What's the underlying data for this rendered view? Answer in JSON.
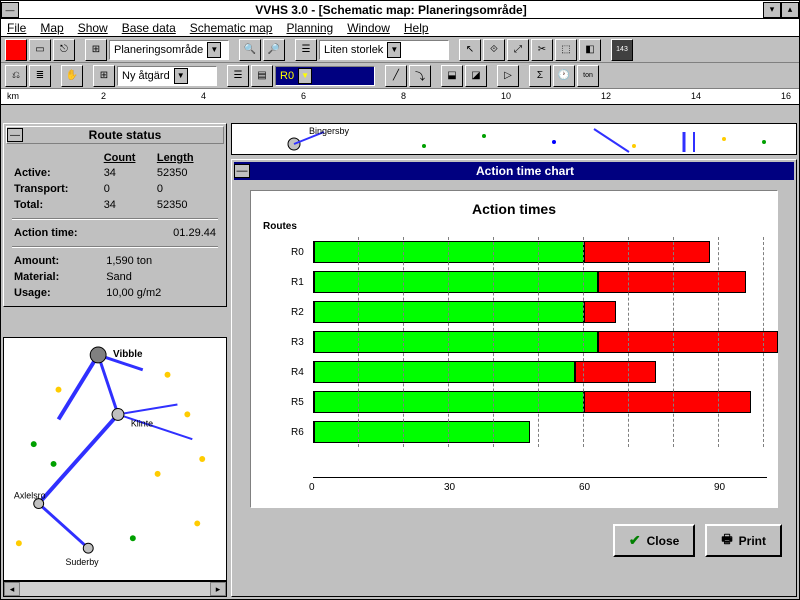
{
  "window": {
    "title": "VVHS 3.0 - [Schematic map: Planeringsområde]"
  },
  "menu": [
    "File",
    "Map",
    "Show",
    "Base data",
    "Schematic map",
    "Planning",
    "Window",
    "Help"
  ],
  "toolbar1": {
    "combo1": "Planeringsområde",
    "combo2": "Liten storlek"
  },
  "toolbar2": {
    "combo1": "Ny åtgärd",
    "combo2": "R0"
  },
  "ruler": {
    "unit": "km",
    "ticks": [
      "2",
      "4",
      "6",
      "8",
      "10",
      "12",
      "14",
      "16"
    ]
  },
  "route_status": {
    "title": "Route status",
    "headers": [
      "Count",
      "Length"
    ],
    "rows": [
      {
        "label": "Active:",
        "count": "34",
        "length": "52350"
      },
      {
        "label": "Transport:",
        "count": "0",
        "length": "0"
      },
      {
        "label": "Total:",
        "count": "34",
        "length": "52350"
      }
    ],
    "action_time_label": "Action time:",
    "action_time": "01.29.44",
    "details": [
      {
        "label": "Amount:",
        "value": "1,590 ton"
      },
      {
        "label": "Material:",
        "value": "Sand"
      },
      {
        "label": "Usage:",
        "value": "10,00 g/m2"
      }
    ]
  },
  "map_labels": {
    "strip": "Bingersby",
    "main": [
      "Vibble",
      "Klinte",
      "Axlelsro",
      "Suderby"
    ]
  },
  "chart": {
    "window_title": "Action time chart",
    "title": "Action times",
    "y_label": "Routes",
    "x_ticks": [
      0,
      30,
      60,
      90
    ],
    "x_max": 100,
    "routes": [
      {
        "name": "R0",
        "green": 60,
        "red": 28
      },
      {
        "name": "R1",
        "green": 63,
        "red": 33
      },
      {
        "name": "R2",
        "green": 60,
        "red": 7
      },
      {
        "name": "R3",
        "green": 63,
        "red": 40
      },
      {
        "name": "R4",
        "green": 58,
        "red": 18
      },
      {
        "name": "R5",
        "green": 60,
        "red": 37
      },
      {
        "name": "R6",
        "green": 48,
        "red": 0
      }
    ],
    "colors": {
      "green": "#00ff00",
      "red": "#ff0000",
      "bg": "#ffffff",
      "grid": "#808080"
    },
    "buttons": {
      "close": "Close",
      "print": "Print"
    }
  }
}
